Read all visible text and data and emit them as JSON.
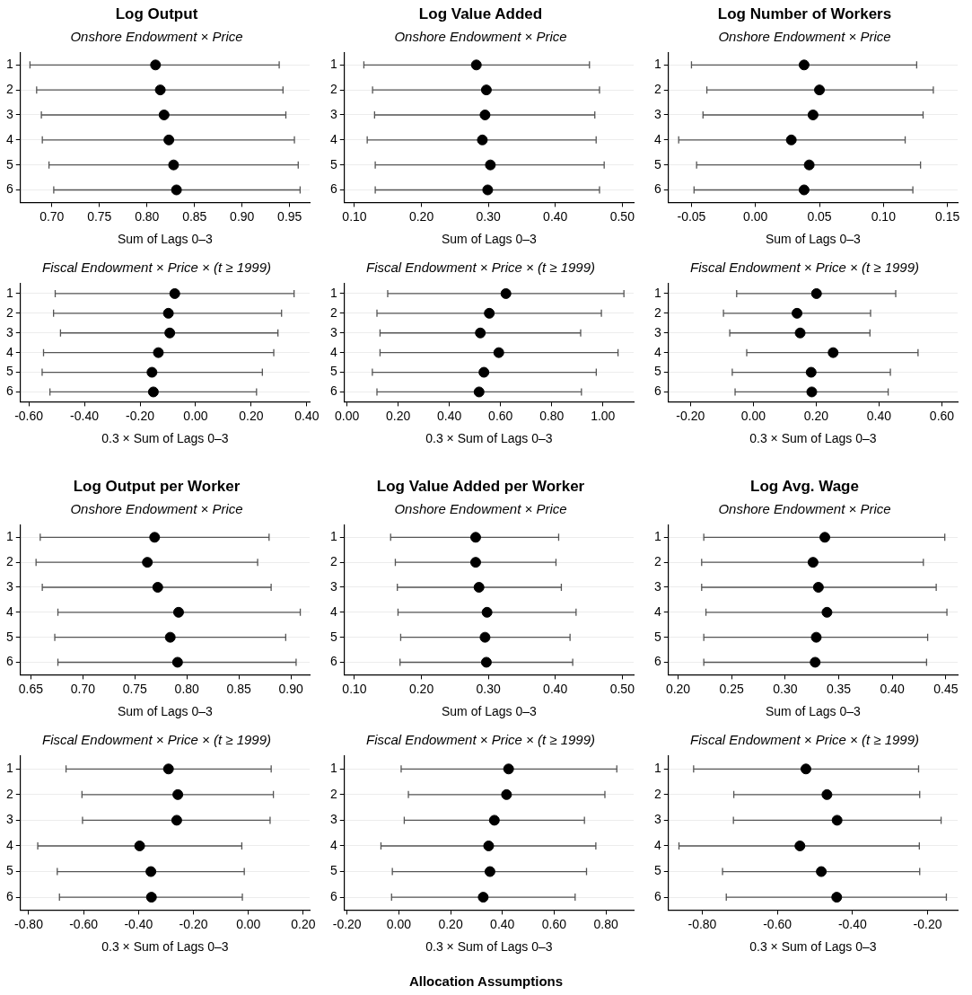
{
  "chart_data": [
    {
      "type": "scatter",
      "title": "Log Output",
      "subtitle": "Onshore Endowment × Price",
      "xlabel": "Sum of Lags 0–3",
      "color": "#000000",
      "marker": "circle",
      "grid": "y",
      "values": [
        1,
        2,
        3,
        4,
        5,
        6
      ],
      "ylim": [
        6.5,
        0.5
      ],
      "yticks": [
        1,
        2,
        3,
        4,
        5,
        6
      ],
      "x": [
        0.809,
        0.814,
        0.818,
        0.823,
        0.828,
        0.831
      ],
      "xerrors": [
        [
          0.677,
          0.939
        ],
        [
          0.684,
          0.943
        ],
        [
          0.689,
          0.946
        ],
        [
          0.69,
          0.955
        ],
        [
          0.697,
          0.959
        ],
        [
          0.702,
          0.961
        ]
      ],
      "xlim": [
        0.667,
        0.971
      ],
      "xticks": [
        {
          "value": 0.7,
          "label": "0.70"
        },
        {
          "value": 0.75,
          "label": "0.75"
        },
        {
          "value": 0.8,
          "label": "0.80"
        },
        {
          "value": 0.85,
          "label": "0.85"
        },
        {
          "value": 0.9,
          "label": "0.90"
        },
        {
          "value": 0.95,
          "label": "0.95"
        }
      ]
    },
    {
      "type": "scatter",
      "title": "Log Value Added",
      "subtitle": "Onshore Endowment × Price",
      "xlabel": "Sum of Lags 0–3",
      "color": "#000000",
      "marker": "circle",
      "grid": "y",
      "values": [
        1,
        2,
        3,
        4,
        5,
        6
      ],
      "ylim": [
        6.5,
        0.5
      ],
      "yticks": [
        1,
        2,
        3,
        4,
        5,
        6
      ],
      "x": [
        0.282,
        0.297,
        0.295,
        0.291,
        0.303,
        0.299
      ],
      "xerrors": [
        [
          0.114,
          0.451
        ],
        [
          0.127,
          0.466
        ],
        [
          0.13,
          0.459
        ],
        [
          0.119,
          0.461
        ],
        [
          0.131,
          0.473
        ],
        [
          0.131,
          0.466
        ]
      ],
      "xlim": [
        0.085,
        0.517
      ],
      "xticks": [
        {
          "value": 0.1,
          "label": "0.10"
        },
        {
          "value": 0.2,
          "label": "0.20"
        },
        {
          "value": 0.3,
          "label": "0.30"
        },
        {
          "value": 0.4,
          "label": "0.40"
        },
        {
          "value": 0.5,
          "label": "0.50"
        }
      ]
    },
    {
      "type": "scatter",
      "title": "Log Number of Workers",
      "subtitle": "Onshore Endowment × Price",
      "xlabel": "Sum of Lags 0–3",
      "color": "#000000",
      "marker": "circle",
      "grid": "y",
      "values": [
        1,
        2,
        3,
        4,
        5,
        6
      ],
      "ylim": [
        6.5,
        0.5
      ],
      "yticks": [
        1,
        2,
        3,
        4,
        5,
        6
      ],
      "x": [
        0.038,
        0.05,
        0.045,
        0.028,
        0.042,
        0.038
      ],
      "xerrors": [
        [
          -0.05,
          0.126
        ],
        [
          -0.038,
          0.139
        ],
        [
          -0.041,
          0.131
        ],
        [
          -0.06,
          0.117
        ],
        [
          -0.046,
          0.129
        ],
        [
          -0.048,
          0.123
        ]
      ],
      "xlim": [
        -0.068,
        0.158
      ],
      "xticks": [
        {
          "value": -0.05,
          "label": "-0.05"
        },
        {
          "value": 0,
          "label": "0.00"
        },
        {
          "value": 0.05,
          "label": "0.05"
        },
        {
          "value": 0.1,
          "label": "0.10"
        },
        {
          "value": 0.15,
          "label": "0.15"
        }
      ]
    },
    {
      "type": "scatter",
      "subtitle": "Fiscal Endowment × Price × (t ≥ 1999)",
      "xlabel": "0.3 × Sum of Lags 0–3",
      "color": "#000000",
      "marker": "circle",
      "grid": "y",
      "values": [
        1,
        2,
        3,
        4,
        5,
        6
      ],
      "ylim": [
        6.5,
        0.5
      ],
      "yticks": [
        1,
        2,
        3,
        4,
        5,
        6
      ],
      "x": [
        -0.075,
        -0.098,
        -0.093,
        -0.134,
        -0.157,
        -0.152
      ],
      "xerrors": [
        [
          -0.505,
          0.354
        ],
        [
          -0.511,
          0.309
        ],
        [
          -0.486,
          0.296
        ],
        [
          -0.547,
          0.281
        ],
        [
          -0.552,
          0.24
        ],
        [
          -0.524,
          0.219
        ]
      ],
      "xlim": [
        -0.63,
        0.41
      ],
      "xticks": [
        {
          "value": -0.6,
          "label": "-0.60"
        },
        {
          "value": -0.4,
          "label": "-0.40"
        },
        {
          "value": -0.2,
          "label": "-0.20"
        },
        {
          "value": 0,
          "label": "0.00"
        },
        {
          "value": 0.2,
          "label": "0.20"
        },
        {
          "value": 0.4,
          "label": "0.40"
        }
      ]
    },
    {
      "type": "scatter",
      "subtitle": "Fiscal Endowment × Price × (t ≥ 1999)",
      "xlabel": "0.3 × Sum of Lags 0–3",
      "color": "#000000",
      "marker": "circle",
      "grid": "y",
      "values": [
        1,
        2,
        3,
        4,
        5,
        6
      ],
      "ylim": [
        6.5,
        0.5
      ],
      "yticks": [
        1,
        2,
        3,
        4,
        5,
        6
      ],
      "x": [
        0.621,
        0.556,
        0.521,
        0.593,
        0.535,
        0.516
      ],
      "xerrors": [
        [
          0.159,
          1.082
        ],
        [
          0.117,
          0.994
        ],
        [
          0.129,
          0.913
        ],
        [
          0.129,
          1.059
        ],
        [
          0.099,
          0.974
        ],
        [
          0.117,
          0.916
        ]
      ],
      "xlim": [
        -0.01,
        1.12
      ],
      "xticks": [
        {
          "value": 0,
          "label": "0.00"
        },
        {
          "value": 0.2,
          "label": "0.20"
        },
        {
          "value": 0.4,
          "label": "0.40"
        },
        {
          "value": 0.6,
          "label": "0.60"
        },
        {
          "value": 0.8,
          "label": "0.80"
        },
        {
          "value": 1,
          "label": "1.00"
        }
      ]
    },
    {
      "type": "scatter",
      "subtitle": "Fiscal Endowment × Price × (t ≥ 1999)",
      "xlabel": "0.3 × Sum of Lags 0–3",
      "color": "#000000",
      "marker": "circle",
      "grid": "y",
      "values": [
        1,
        2,
        3,
        4,
        5,
        6
      ],
      "ylim": [
        6.5,
        0.5
      ],
      "yticks": [
        1,
        2,
        3,
        4,
        5,
        6
      ],
      "x": [
        0.201,
        0.139,
        0.149,
        0.254,
        0.184,
        0.186
      ],
      "xerrors": [
        [
          -0.053,
          0.453
        ],
        [
          -0.095,
          0.373
        ],
        [
          -0.075,
          0.371
        ],
        [
          -0.021,
          0.524
        ],
        [
          -0.067,
          0.436
        ],
        [
          -0.058,
          0.429
        ]
      ],
      "xlim": [
        -0.27,
        0.65
      ],
      "xticks": [
        {
          "value": -0.2,
          "label": "-0.20"
        },
        {
          "value": 0,
          "label": "0.00"
        },
        {
          "value": 0.2,
          "label": "0.20"
        },
        {
          "value": 0.4,
          "label": "0.40"
        },
        {
          "value": 0.6,
          "label": "0.60"
        }
      ]
    },
    {
      "type": "scatter",
      "title": "Log Output per Worker",
      "subtitle": "Onshore Endowment × Price",
      "xlabel": "Sum of Lags 0–3",
      "color": "#000000",
      "marker": "circle",
      "grid": "y",
      "values": [
        1,
        2,
        3,
        4,
        5,
        6
      ],
      "ylim": [
        6.5,
        0.5
      ],
      "yticks": [
        1,
        2,
        3,
        4,
        5,
        6
      ],
      "x": [
        0.769,
        0.762,
        0.772,
        0.792,
        0.784,
        0.791
      ],
      "xerrors": [
        [
          0.659,
          0.879
        ],
        [
          0.655,
          0.868
        ],
        [
          0.661,
          0.881
        ],
        [
          0.676,
          0.909
        ],
        [
          0.673,
          0.895
        ],
        [
          0.676,
          0.905
        ]
      ],
      "xlim": [
        0.64,
        0.918
      ],
      "xticks": [
        {
          "value": 0.65,
          "label": "0.65"
        },
        {
          "value": 0.7,
          "label": "0.70"
        },
        {
          "value": 0.75,
          "label": "0.75"
        },
        {
          "value": 0.8,
          "label": "0.80"
        },
        {
          "value": 0.85,
          "label": "0.85"
        },
        {
          "value": 0.9,
          "label": "0.90"
        }
      ]
    },
    {
      "type": "scatter",
      "title": "Log Value Added per Worker",
      "subtitle": "Onshore Endowment × Price",
      "xlabel": "Sum of Lags 0–3",
      "color": "#000000",
      "marker": "circle",
      "grid": "y",
      "values": [
        1,
        2,
        3,
        4,
        5,
        6
      ],
      "ylim": [
        6.5,
        0.5
      ],
      "yticks": [
        1,
        2,
        3,
        4,
        5,
        6
      ],
      "x": [
        0.281,
        0.281,
        0.286,
        0.298,
        0.295,
        0.297
      ],
      "xerrors": [
        [
          0.154,
          0.405
        ],
        [
          0.161,
          0.401
        ],
        [
          0.164,
          0.409
        ],
        [
          0.165,
          0.431
        ],
        [
          0.169,
          0.422
        ],
        [
          0.168,
          0.426
        ]
      ],
      "xlim": [
        0.085,
        0.517
      ],
      "xticks": [
        {
          "value": 0.1,
          "label": "0.10"
        },
        {
          "value": 0.2,
          "label": "0.20"
        },
        {
          "value": 0.3,
          "label": "0.30"
        },
        {
          "value": 0.4,
          "label": "0.40"
        },
        {
          "value": 0.5,
          "label": "0.50"
        }
      ]
    },
    {
      "type": "scatter",
      "title": "Log Avg. Wage",
      "subtitle": "Onshore Endowment × Price",
      "xlabel": "Sum of Lags 0–3",
      "color": "#000000",
      "marker": "circle",
      "grid": "y",
      "values": [
        1,
        2,
        3,
        4,
        5,
        6
      ],
      "ylim": [
        6.5,
        0.5
      ],
      "yticks": [
        1,
        2,
        3,
        4,
        5,
        6
      ],
      "x": [
        0.337,
        0.326,
        0.331,
        0.339,
        0.329,
        0.328
      ],
      "xerrors": [
        [
          0.224,
          0.449
        ],
        [
          0.222,
          0.429
        ],
        [
          0.222,
          0.441
        ],
        [
          0.226,
          0.451
        ],
        [
          0.224,
          0.433
        ],
        [
          0.224,
          0.432
        ]
      ],
      "xlim": [
        0.191,
        0.461
      ],
      "xticks": [
        {
          "value": 0.2,
          "label": "0.20"
        },
        {
          "value": 0.25,
          "label": "0.25"
        },
        {
          "value": 0.3,
          "label": "0.30"
        },
        {
          "value": 0.35,
          "label": "0.35"
        },
        {
          "value": 0.4,
          "label": "0.40"
        },
        {
          "value": 0.45,
          "label": "0.45"
        }
      ]
    },
    {
      "type": "scatter",
      "subtitle": "Fiscal Endowment × Price × (t ≥ 1999)",
      "xlabel": "0.3 × Sum of Lags 0–3",
      "color": "#000000",
      "marker": "circle",
      "grid": "y",
      "values": [
        1,
        2,
        3,
        4,
        5,
        6
      ],
      "ylim": [
        6.5,
        0.5
      ],
      "yticks": [
        1,
        2,
        3,
        4,
        5,
        6
      ],
      "x": [
        -0.291,
        -0.257,
        -0.261,
        -0.396,
        -0.355,
        -0.353
      ],
      "xerrors": [
        [
          -0.664,
          0.083
        ],
        [
          -0.606,
          0.091
        ],
        [
          -0.604,
          0.079
        ],
        [
          -0.767,
          -0.024
        ],
        [
          -0.696,
          -0.015
        ],
        [
          -0.688,
          -0.022
        ]
      ],
      "xlim": [
        -0.83,
        0.223
      ],
      "xticks": [
        {
          "value": -0.8,
          "label": "-0.80"
        },
        {
          "value": -0.6,
          "label": "-0.60"
        },
        {
          "value": -0.4,
          "label": "-0.40"
        },
        {
          "value": -0.2,
          "label": "-0.20"
        },
        {
          "value": 0,
          "label": "0.00"
        },
        {
          "value": 0.2,
          "label": "0.20"
        }
      ]
    },
    {
      "type": "scatter",
      "subtitle": "Fiscal Endowment × Price × (t ≥ 1999)",
      "xlabel": "0.3 × Sum of Lags 0–3",
      "color": "#000000",
      "marker": "circle",
      "grid": "y",
      "values": [
        1,
        2,
        3,
        4,
        5,
        6
      ],
      "ylim": [
        6.5,
        0.5
      ],
      "yticks": [
        1,
        2,
        3,
        4,
        5,
        6
      ],
      "x": [
        0.424,
        0.416,
        0.369,
        0.347,
        0.352,
        0.326
      ],
      "xerrors": [
        [
          0.009,
          0.842
        ],
        [
          0.037,
          0.796
        ],
        [
          0.021,
          0.717
        ],
        [
          -0.069,
          0.761
        ],
        [
          -0.025,
          0.725
        ],
        [
          -0.028,
          0.681
        ]
      ],
      "xlim": [
        -0.21,
        0.907
      ],
      "xticks": [
        {
          "value": -0.2,
          "label": "-0.20"
        },
        {
          "value": 0,
          "label": "0.00"
        },
        {
          "value": 0.2,
          "label": "0.20"
        },
        {
          "value": 0.4,
          "label": "0.40"
        },
        {
          "value": 0.6,
          "label": "0.60"
        },
        {
          "value": 0.8,
          "label": "0.80"
        }
      ],
      "annotations": [
        "Allocation Assumptions"
      ]
    },
    {
      "type": "scatter",
      "subtitle": "Fiscal Endowment × Price × (t ≥ 1999)",
      "xlabel": "0.3 × Sum of Lags 0–3",
      "color": "#000000",
      "marker": "circle",
      "grid": "y",
      "values": [
        1,
        2,
        3,
        4,
        5,
        6
      ],
      "ylim": [
        6.5,
        0.5
      ],
      "yticks": [
        1,
        2,
        3,
        4,
        5,
        6
      ],
      "x": [
        -0.524,
        -0.468,
        -0.441,
        -0.54,
        -0.483,
        -0.442
      ],
      "xerrors": [
        [
          -0.823,
          -0.224
        ],
        [
          -0.716,
          -0.221
        ],
        [
          -0.717,
          -0.164
        ],
        [
          -0.862,
          -0.222
        ],
        [
          -0.746,
          -0.221
        ],
        [
          -0.736,
          -0.15
        ]
      ],
      "xlim": [
        -0.89,
        -0.12
      ],
      "xticks": [
        {
          "value": -0.8,
          "label": "-0.80"
        },
        {
          "value": -0.6,
          "label": "-0.60"
        },
        {
          "value": -0.4,
          "label": "-0.40"
        },
        {
          "value": -0.2,
          "label": "-0.20"
        }
      ]
    }
  ]
}
